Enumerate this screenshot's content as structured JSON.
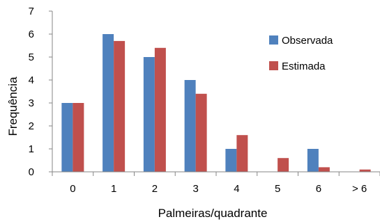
{
  "chart_data": {
    "type": "bar",
    "title": "",
    "xlabel": "Palmeiras/quadrante",
    "ylabel": "Frequência",
    "categories": [
      "0",
      "1",
      "2",
      "3",
      "4",
      "5",
      "6",
      "> 6"
    ],
    "series": [
      {
        "name": "Observada",
        "values": [
          3,
          6,
          5,
          4,
          1,
          0,
          1,
          0
        ],
        "color": "#4f81bd"
      },
      {
        "name": "Estimada",
        "values": [
          3,
          5.7,
          5.4,
          3.4,
          1.6,
          0.6,
          0.2,
          0.1
        ],
        "color": "#c0504d"
      }
    ],
    "ylim": [
      0,
      7
    ],
    "yticks": [
      "0",
      "1",
      "2",
      "3",
      "4",
      "5",
      "6",
      "7"
    ],
    "grid": false,
    "legend": "right"
  }
}
